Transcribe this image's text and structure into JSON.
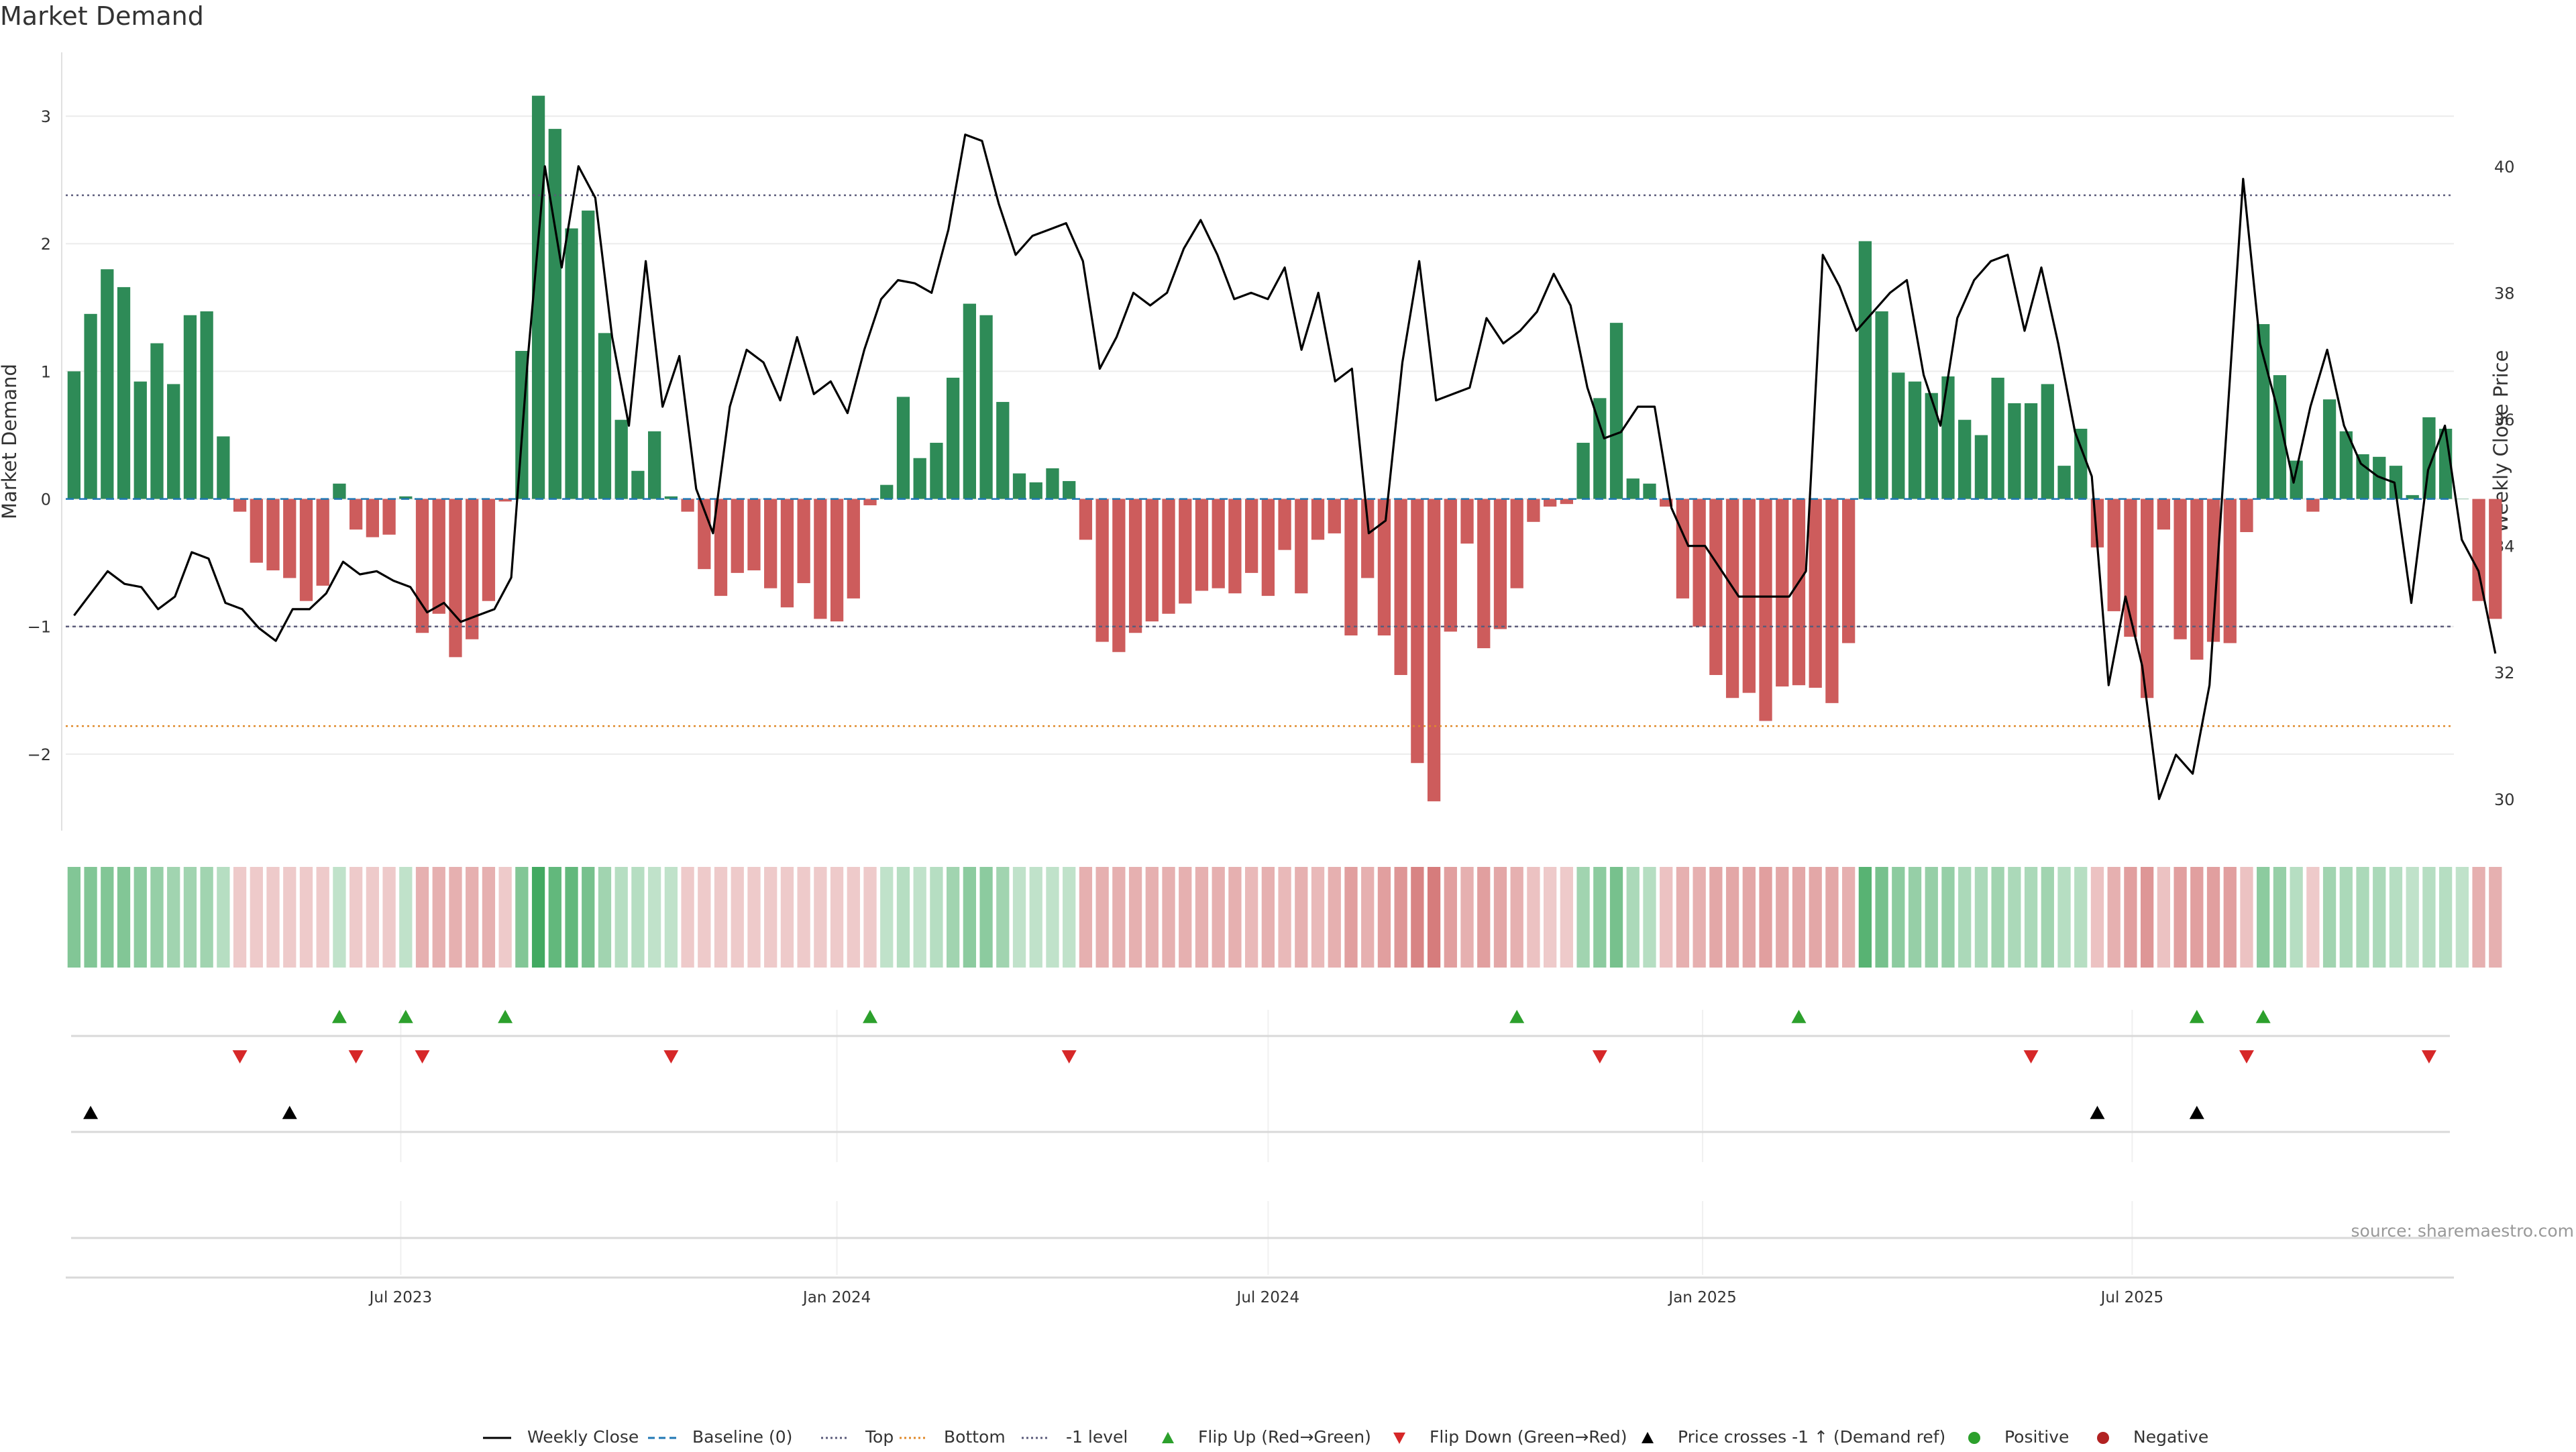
{
  "title": "Market Demand",
  "source": "source: sharemaestro.com",
  "colors": {
    "positive": "#2e8b57",
    "negative": "#cd5c5c",
    "price": "#000000",
    "top_line": "#5b5b7a",
    "bottom_line": "#e08a2a",
    "minus1_line": "#5b5b7a",
    "baseline": "#1f77b4",
    "flip_up": "#2ca02c",
    "flip_down": "#d62728",
    "cross": "#000000",
    "legend_positive": "#2ca02c",
    "legend_negative": "#b22222"
  },
  "legend": [
    {
      "label": "Weekly Close",
      "symbol": "solid-line-icon"
    },
    {
      "label": "Baseline (0)",
      "symbol": "dashed-line-icon"
    },
    {
      "label": "Top",
      "symbol": "dotted-line-icon"
    },
    {
      "label": "Bottom",
      "symbol": "orange-dotted-line-icon"
    },
    {
      "label": "-1 level",
      "symbol": "dotted-line-icon"
    },
    {
      "label": "Flip Up (Red→Green)",
      "symbol": "green-up-triangle-icon"
    },
    {
      "label": "Flip Down (Green→Red)",
      "symbol": "red-down-triangle-icon"
    },
    {
      "label": "Price crosses -1 ↑ (Demand ref)",
      "symbol": "black-up-triangle-icon"
    },
    {
      "label": "Positive",
      "symbol": "green-dot-icon"
    },
    {
      "label": "Negative",
      "symbol": "red-dot-icon"
    }
  ],
  "chart_data": {
    "type": "bar",
    "title": "Market Demand",
    "ylabel": "Market Demand",
    "y2label": "Weekly Close Price",
    "ylim": [
      -2.6,
      3.5
    ],
    "y2lim": [
      29.5,
      41.8
    ],
    "yticks": [
      3,
      2,
      1,
      0,
      -1,
      -2
    ],
    "ytick_labels": [
      "3",
      "2",
      "1",
      "0",
      "−1",
      "−2"
    ],
    "y2ticks": [
      40,
      38,
      36,
      34,
      32,
      30
    ],
    "y2tick_labels": [
      "40",
      "38",
      "36",
      "34",
      "32",
      "30"
    ],
    "x_index_range": [
      -0.5,
      143.5
    ],
    "xticks": [
      {
        "label": "Jul 2023",
        "index": 19.7
      },
      {
        "label": "Jan 2024",
        "index": 46
      },
      {
        "label": "Jul 2024",
        "index": 72
      },
      {
        "label": "Jan 2025",
        "index": 98.2
      },
      {
        "label": "Jul 2025",
        "index": 124.1
      }
    ],
    "reference_lines": {
      "top": 2.38,
      "bottom": -1.78,
      "minus1": -1.0,
      "baseline": 0
    },
    "demand": [
      1.0,
      1.45,
      1.8,
      1.66,
      0.92,
      1.22,
      0.9,
      1.44,
      1.47,
      0.49,
      -0.1,
      -0.5,
      -0.56,
      -0.62,
      -0.8,
      -0.68,
      0.12,
      -0.24,
      -0.3,
      -0.28,
      0.02,
      -1.05,
      -0.9,
      -1.24,
      -1.1,
      -0.8,
      -0.02,
      1.16,
      3.16,
      2.9,
      2.12,
      2.26,
      1.3,
      0.62,
      0.22,
      0.53,
      0.02,
      -0.1,
      -0.55,
      -0.76,
      -0.58,
      -0.56,
      -0.7,
      -0.85,
      -0.66,
      -0.94,
      -0.96,
      -0.78,
      -0.05,
      0.11,
      0.8,
      0.32,
      0.44,
      0.95,
      1.53,
      1.44,
      0.76,
      0.2,
      0.13,
      0.24,
      0.14,
      -0.32,
      -1.12,
      -1.2,
      -1.05,
      -0.96,
      -0.9,
      -0.82,
      -0.72,
      -0.7,
      -0.74,
      -0.58,
      -0.76,
      -0.4,
      -0.74,
      -0.32,
      -0.27,
      -1.07,
      -0.62,
      -1.07,
      -1.38,
      -2.07,
      -2.37,
      -1.04,
      -0.35,
      -1.17,
      -1.02,
      -0.7,
      -0.18,
      -0.06,
      -0.04,
      0.44,
      0.79,
      1.38,
      0.16,
      0.12,
      -0.06,
      -0.78,
      -1.0,
      -1.38,
      -1.56,
      -1.52,
      -1.74,
      -1.47,
      -1.46,
      -1.48,
      -1.6,
      -1.13,
      2.02,
      1.47,
      0.99,
      0.92,
      0.83,
      0.96,
      0.62,
      0.5,
      0.95,
      0.75,
      0.75,
      0.9,
      0.26,
      0.55,
      -0.38,
      -0.88,
      -1.08,
      -1.56,
      -0.24,
      -1.1,
      -1.26,
      -1.12,
      -1.13,
      -0.26,
      1.37,
      0.97,
      0.3,
      -0.1,
      0.78,
      0.53,
      0.35,
      0.33,
      0.26,
      0.03,
      0.64,
      0.55,
      0.0,
      -0.8,
      -0.94
    ],
    "weekly_close": [
      32.9,
      33.25,
      33.6,
      33.4,
      33.35,
      33.0,
      33.2,
      33.9,
      33.8,
      33.1,
      33.0,
      32.7,
      32.5,
      33.0,
      33.0,
      33.25,
      33.75,
      33.55,
      33.6,
      33.45,
      33.35,
      32.95,
      33.1,
      32.8,
      32.9,
      33.0,
      33.5,
      37.0,
      40.0,
      38.4,
      40.0,
      39.5,
      37.3,
      35.9,
      38.5,
      36.2,
      37.0,
      34.9,
      34.2,
      36.2,
      37.1,
      36.9,
      36.3,
      37.3,
      36.4,
      36.6,
      36.1,
      37.1,
      37.9,
      38.2,
      38.15,
      38.0,
      39.0,
      40.5,
      40.4,
      39.4,
      38.6,
      38.9,
      39.0,
      39.1,
      38.5,
      36.8,
      37.3,
      38.0,
      37.8,
      38.0,
      38.7,
      39.15,
      38.6,
      37.9,
      38.0,
      37.9,
      38.4,
      37.1,
      38.0,
      36.6,
      36.8,
      34.2,
      34.4,
      36.9,
      38.5,
      36.3,
      36.4,
      36.5,
      37.6,
      37.2,
      37.4,
      37.7,
      38.3,
      37.8,
      36.5,
      35.7,
      35.8,
      36.2,
      36.2,
      34.6,
      34.0,
      34.0,
      33.6,
      33.2,
      33.2,
      33.2,
      33.2,
      33.6,
      38.6,
      38.1,
      37.4,
      37.7,
      38.0,
      38.2,
      36.7,
      35.9,
      37.6,
      38.2,
      38.5,
      38.6,
      37.4,
      38.4,
      37.2,
      35.8,
      35.1,
      31.8,
      33.2,
      32.1,
      30.0,
      30.7,
      30.4,
      31.8,
      35.8,
      39.8,
      37.2,
      36.2,
      35.0,
      36.2,
      37.1,
      35.9,
      35.3,
      35.1,
      35.0,
      33.1,
      35.2,
      35.9,
      34.1,
      33.6,
      32.3
    ],
    "strength_index": [
      0.6,
      0.6,
      0.6,
      0.6,
      0.55,
      0.5,
      0.45,
      0.45,
      0.45,
      0.35,
      0.3,
      0.3,
      0.3,
      0.3,
      0.3,
      0.3,
      0.3,
      0.3,
      0.3,
      0.3,
      0.3,
      0.45,
      0.45,
      0.45,
      0.45,
      0.45,
      0.3,
      0.6,
      0.9,
      0.75,
      0.75,
      0.65,
      0.45,
      0.35,
      0.35,
      0.3,
      0.3,
      0.3,
      0.3,
      0.3,
      0.3,
      0.3,
      0.3,
      0.3,
      0.3,
      0.3,
      0.3,
      0.3,
      0.3,
      0.3,
      0.35,
      0.3,
      0.35,
      0.45,
      0.55,
      0.55,
      0.45,
      0.3,
      0.3,
      0.3,
      0.3,
      0.45,
      0.45,
      0.45,
      0.45,
      0.45,
      0.45,
      0.45,
      0.45,
      0.45,
      0.45,
      0.4,
      0.45,
      0.4,
      0.45,
      0.4,
      0.45,
      0.55,
      0.45,
      0.55,
      0.6,
      0.7,
      0.75,
      0.55,
      0.45,
      0.55,
      0.5,
      0.45,
      0.35,
      0.3,
      0.3,
      0.45,
      0.55,
      0.65,
      0.4,
      0.35,
      0.35,
      0.45,
      0.45,
      0.5,
      0.5,
      0.5,
      0.55,
      0.5,
      0.5,
      0.5,
      0.5,
      0.45,
      0.8,
      0.65,
      0.55,
      0.5,
      0.5,
      0.5,
      0.4,
      0.4,
      0.45,
      0.4,
      0.4,
      0.45,
      0.35,
      0.35,
      0.35,
      0.45,
      0.55,
      0.6,
      0.35,
      0.55,
      0.55,
      0.55,
      0.55,
      0.35,
      0.55,
      0.5,
      0.35,
      0.3,
      0.45,
      0.4,
      0.4,
      0.4,
      0.35,
      0.3,
      0.35,
      0.35,
      0.3,
      0.45,
      0.45
    ],
    "flip_up_indices": [
      16,
      20,
      26,
      48,
      87,
      104,
      128,
      132
    ],
    "flip_down_indices": [
      10,
      17,
      21,
      36,
      60,
      92,
      118,
      131,
      142
    ],
    "price_cross_up_indices": [
      1,
      13,
      122,
      128
    ]
  }
}
